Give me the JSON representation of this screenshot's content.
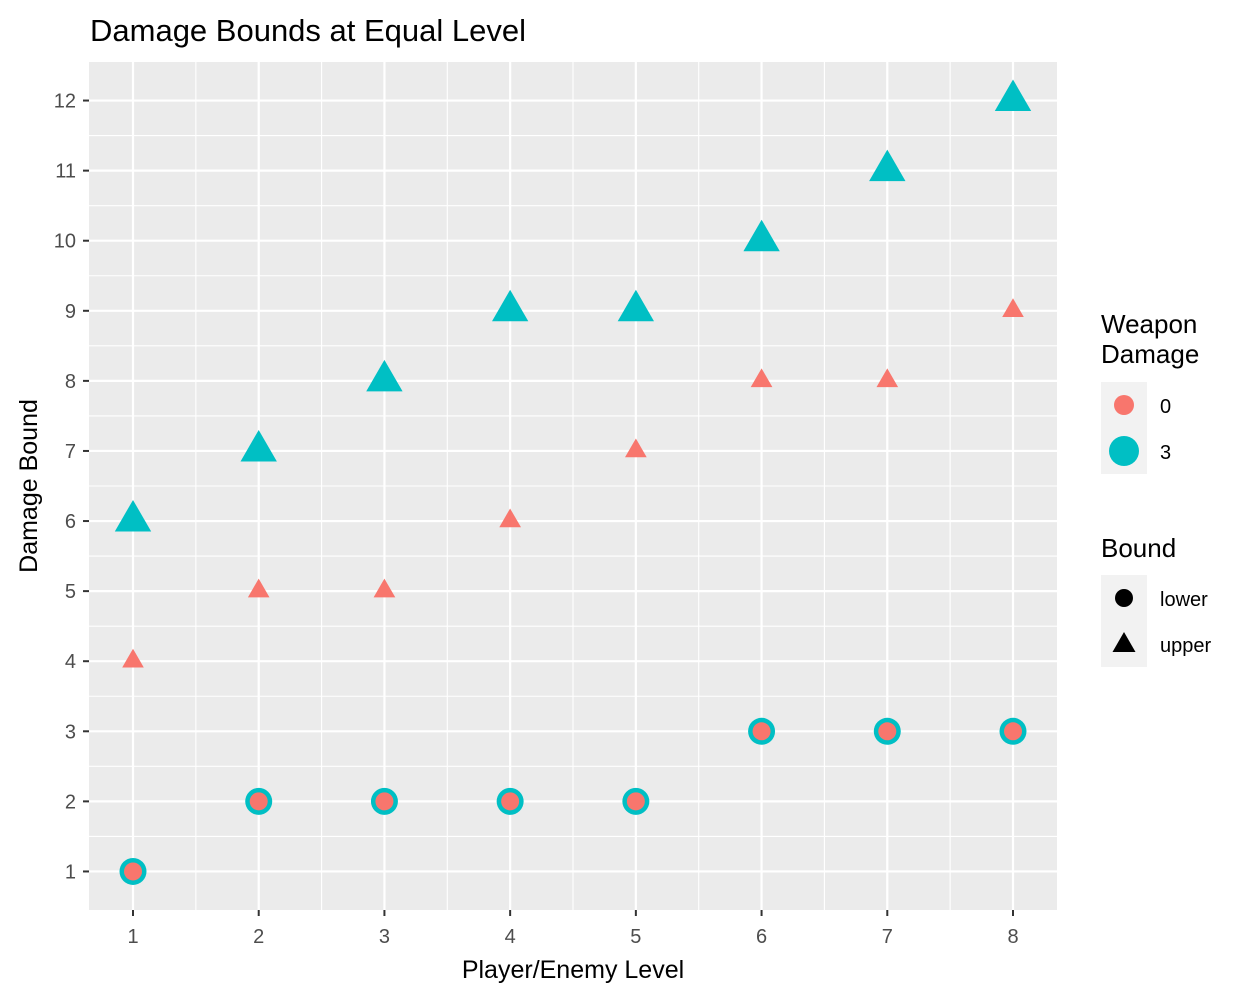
{
  "chart_data": {
    "type": "scatter",
    "title": "Damage Bounds at Equal Level",
    "xlabel": "Player/Enemy Level",
    "ylabel": "Damage Bound",
    "xlim": [
      0.65,
      8.35
    ],
    "ylim": [
      0.45,
      12.55
    ],
    "x_ticks": [
      1,
      2,
      3,
      4,
      5,
      6,
      7,
      8
    ],
    "y_ticks": [
      1,
      2,
      3,
      4,
      5,
      6,
      7,
      8,
      9,
      10,
      11,
      12
    ],
    "grid": true,
    "panel_background": "#ebebeb",
    "grid_color": "#ffffff",
    "legend_position": "right",
    "legends": {
      "weapon_damage": {
        "title_lines": [
          "Weapon",
          "Damage"
        ],
        "entries": [
          {
            "label": "0",
            "color": "#F8766D",
            "shape": "circle",
            "size": "small"
          },
          {
            "label": "3",
            "color": "#00BFC4",
            "shape": "circle",
            "size": "large"
          }
        ]
      },
      "bound": {
        "title": "Bound",
        "entries": [
          {
            "label": "lower",
            "shape": "circle",
            "color": "#000000"
          },
          {
            "label": "upper",
            "shape": "triangle",
            "color": "#000000"
          }
        ]
      }
    },
    "series": [
      {
        "weapon_damage": "3",
        "bound": "lower",
        "color": "#00BFC4",
        "shape": "circle",
        "size": "large",
        "x": [
          1,
          2,
          3,
          4,
          5,
          6,
          7,
          8
        ],
        "y": [
          1,
          2,
          2,
          2,
          2,
          3,
          3,
          3
        ]
      },
      {
        "weapon_damage": "3",
        "bound": "upper",
        "color": "#00BFC4",
        "shape": "triangle",
        "size": "large",
        "x": [
          1,
          2,
          3,
          4,
          5,
          6,
          7,
          8
        ],
        "y": [
          6,
          7,
          8,
          9,
          9,
          10,
          11,
          12
        ]
      },
      {
        "weapon_damage": "0",
        "bound": "lower",
        "color": "#F8766D",
        "shape": "circle",
        "size": "small",
        "x": [
          1,
          2,
          3,
          4,
          5,
          6,
          7,
          8
        ],
        "y": [
          1,
          2,
          2,
          2,
          2,
          3,
          3,
          3
        ]
      },
      {
        "weapon_damage": "0",
        "bound": "upper",
        "color": "#F8766D",
        "shape": "triangle",
        "size": "small",
        "x": [
          1,
          2,
          3,
          4,
          5,
          6,
          7,
          8
        ],
        "y": [
          4,
          5,
          5,
          6,
          7,
          8,
          8,
          9
        ]
      }
    ]
  }
}
